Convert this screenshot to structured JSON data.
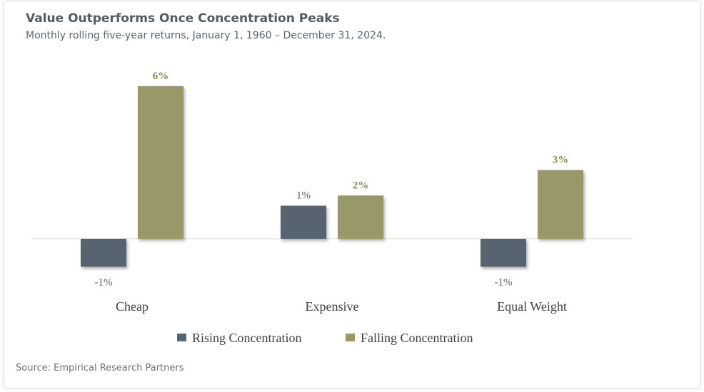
{
  "chart_data": {
    "type": "bar",
    "title": "Value Outperforms Once Concentration Peaks",
    "subtitle": "Monthly rolling five-year returns, January 1, 1960 – December 31, 2024.",
    "categories": [
      "Cheap",
      "Expensive",
      "Equal Weight"
    ],
    "series": [
      {
        "name": "Rising Concentration",
        "color": "#55646e",
        "values": [
          -1.1,
          1.3,
          -1.1
        ],
        "labels": [
          "-1%",
          "1%",
          "-1%"
        ]
      },
      {
        "name": "Falling Concentration",
        "color": "#989868",
        "values": [
          6.0,
          1.7,
          2.7
        ],
        "labels": [
          "6%",
          "2%",
          "3%"
        ]
      }
    ],
    "label_colors": [
      "#55646e",
      "#8c8c4e"
    ],
    "legend_position": "bottom",
    "grid": false,
    "source": "Source: Empirical Research Partners"
  }
}
